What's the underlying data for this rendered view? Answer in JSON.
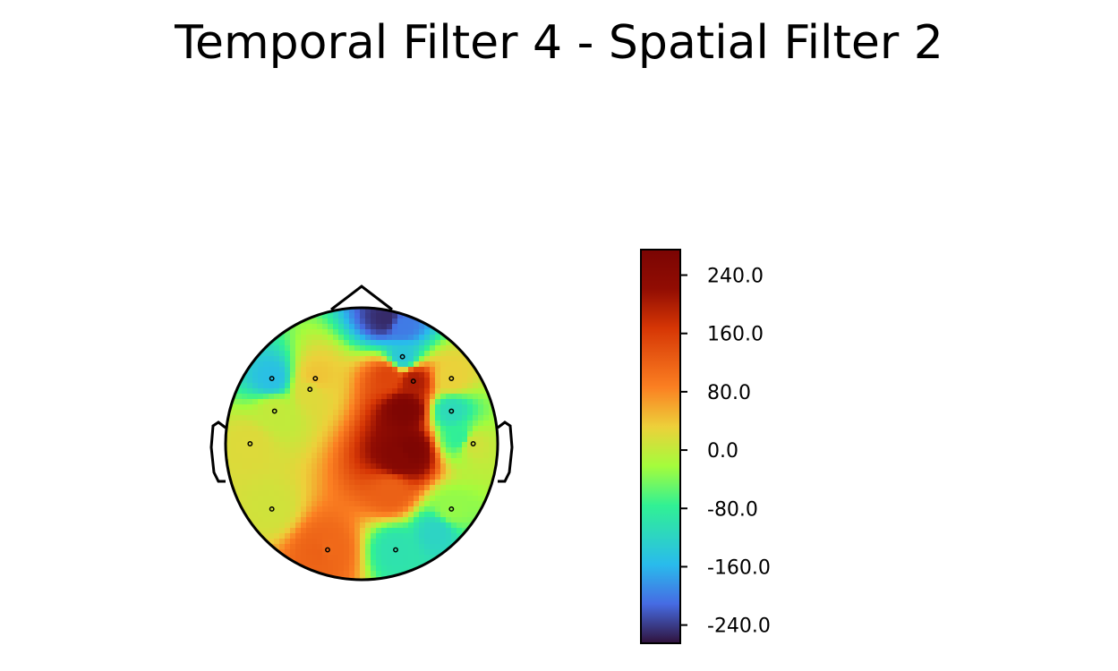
{
  "chart_data": {
    "type": "heatmap",
    "title": "Temporal Filter 4 - Spatial Filter 2",
    "colormap": "turbo",
    "colorbar": {
      "range": [
        -265,
        275
      ],
      "ticks": [
        240,
        160,
        80,
        0,
        -80,
        -160,
        -240
      ],
      "tick_labels": [
        "240.0",
        "160.0",
        "80.0",
        "0.0",
        "-80.0",
        "-160.0",
        "-240.0"
      ],
      "placement": "right"
    },
    "sensors": [
      {
        "x": -0.34,
        "y": 0.48,
        "value": 40
      },
      {
        "x": 0.3,
        "y": 0.64,
        "value": -140
      },
      {
        "x": -0.66,
        "y": 0.48,
        "value": -150
      },
      {
        "x": -0.38,
        "y": 0.4,
        "value": 20
      },
      {
        "x": 0.38,
        "y": 0.46,
        "value": 200
      },
      {
        "x": 0.66,
        "y": 0.48,
        "value": 30
      },
      {
        "x": -0.64,
        "y": 0.24,
        "value": 0
      },
      {
        "x": 0.66,
        "y": 0.24,
        "value": -110
      },
      {
        "x": -0.82,
        "y": 0.0,
        "value": 20
      },
      {
        "x": 0.82,
        "y": 0.0,
        "value": 10
      },
      {
        "x": -0.66,
        "y": -0.48,
        "value": 10
      },
      {
        "x": 0.66,
        "y": -0.48,
        "value": -30
      },
      {
        "x": -0.25,
        "y": -0.78,
        "value": 110
      },
      {
        "x": 0.25,
        "y": -0.78,
        "value": -100
      }
    ]
  }
}
